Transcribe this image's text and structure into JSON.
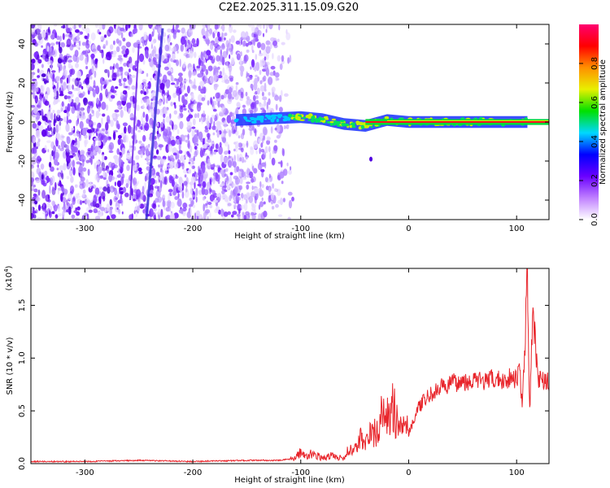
{
  "title": "C2E2.2025.311.15.09.G20",
  "chart_data": [
    {
      "type": "heatmap",
      "xlabel": "Height of straight line (km)",
      "ylabel": "Frequency (Hz)",
      "xlim": [
        -350,
        130
      ],
      "ylim": [
        -50,
        50
      ],
      "xticks": [
        -300,
        -200,
        -100,
        0,
        100
      ],
      "yticks": [
        -40,
        -20,
        0,
        20,
        40
      ],
      "noise_extent_km": [
        -350,
        -105
      ],
      "signal_track": [
        {
          "x": -160,
          "f": 1.0
        },
        {
          "x": -140,
          "f": 1.5
        },
        {
          "x": -120,
          "f": 2.0
        },
        {
          "x": -100,
          "f": 2.5
        },
        {
          "x": -80,
          "f": 1.5
        },
        {
          "x": -60,
          "f": -1.0
        },
        {
          "x": -40,
          "f": -2.0
        },
        {
          "x": -20,
          "f": 1.0
        },
        {
          "x": 0,
          "f": 0.0
        },
        {
          "x": 40,
          "f": 0.0
        },
        {
          "x": 80,
          "f": 0.0
        },
        {
          "x": 110,
          "f": 0.0
        }
      ],
      "diagonal_features": [
        {
          "x1": -243,
          "f1": -50,
          "x2": -228,
          "f2": 48
        },
        {
          "x1": -258,
          "f1": -40,
          "x2": -250,
          "f2": 40
        }
      ]
    },
    {
      "colorbar": {
        "label": "Normalized spectral amplitude",
        "range": [
          0,
          1
        ],
        "ticks": [
          0.0,
          0.2,
          0.4,
          0.6,
          0.8
        ],
        "tick_labels": [
          "0.0",
          "0.2",
          "0.4",
          "0.6",
          "0.8"
        ],
        "colors": [
          "#ffffff",
          "#c080ff",
          "#6a00ff",
          "#0000ff",
          "#00d8ff",
          "#00e000",
          "#e8f000",
          "#ff9000",
          "#ff0000",
          "#ff0070"
        ]
      }
    },
    {
      "type": "line",
      "xlabel": "Height of straight line (km)",
      "ylabel": "SNR (10 * v/v)",
      "y_multiplier": "(x10",
      "y_exponent": "4",
      "xlim": [
        -350,
        130
      ],
      "ylim": [
        0,
        1.85
      ],
      "xticks": [
        -300,
        -200,
        -100,
        0,
        100
      ],
      "yticks": [
        0.0,
        0.5,
        1.0,
        1.5
      ],
      "ytick_labels": [
        "0.0",
        "0.5",
        "1.0",
        "1.5"
      ],
      "series": [
        {
          "color": "#e8242a",
          "x": [
            -350,
            -300,
            -250,
            -200,
            -150,
            -120,
            -105,
            -100,
            -95,
            -90,
            -80,
            -70,
            -60,
            -55,
            -50,
            -45,
            -40,
            -35,
            -30,
            -25,
            -20,
            -15,
            -10,
            -5,
            0,
            5,
            10,
            20,
            30,
            40,
            50,
            60,
            70,
            80,
            90,
            95,
            100,
            103,
            105,
            108,
            110,
            112,
            115,
            120,
            130
          ],
          "values": [
            0.02,
            0.02,
            0.03,
            0.02,
            0.03,
            0.03,
            0.05,
            0.12,
            0.06,
            0.1,
            0.05,
            0.08,
            0.04,
            0.15,
            0.12,
            0.25,
            0.18,
            0.3,
            0.28,
            0.45,
            0.42,
            0.55,
            0.35,
            0.45,
            0.3,
            0.42,
            0.55,
            0.65,
            0.72,
            0.76,
            0.78,
            0.79,
            0.78,
            0.8,
            0.79,
            0.83,
            0.8,
            0.92,
            0.55,
            1.2,
            1.85,
            0.45,
            1.45,
            0.8,
            0.78
          ],
          "jitter_start_x": -110
        }
      ]
    }
  ]
}
